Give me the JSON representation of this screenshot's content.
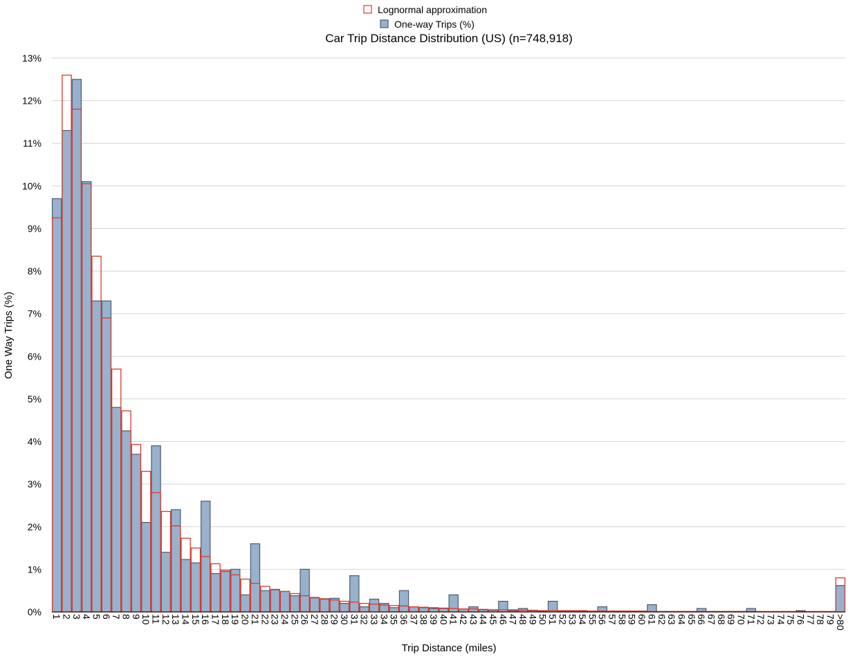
{
  "chart_data": {
    "type": "bar",
    "title": "Car Trip Distance Distribution (US) (n=748,918)",
    "xlabel": "Trip Distance (miles)",
    "ylabel": "One Way Trips (%)",
    "ylim": [
      0,
      13
    ],
    "ytick_labels": [
      "0%",
      "1%",
      "2%",
      "3%",
      "4%",
      "5%",
      "6%",
      "7%",
      "8%",
      "9%",
      "10%",
      "11%",
      "12%",
      "13%"
    ],
    "grid": true,
    "legend_position": "top-center",
    "categories": [
      "1",
      "2",
      "3",
      "4",
      "5",
      "6",
      "7",
      "8",
      "9",
      "10",
      "11",
      "12",
      "13",
      "14",
      "15",
      "16",
      "17",
      "18",
      "19",
      "20",
      "21",
      "22",
      "23",
      "24",
      "25",
      "26",
      "27",
      "28",
      "29",
      "30",
      "31",
      "32",
      "33",
      "34",
      "35",
      "36",
      "37",
      "38",
      "39",
      "40",
      "41",
      "42",
      "43",
      "44",
      "45",
      "46",
      "47",
      "48",
      "49",
      "50",
      "51",
      "52",
      "53",
      "54",
      "55",
      "56",
      "57",
      "58",
      "59",
      "60",
      "61",
      "62",
      "63",
      "64",
      "65",
      "66",
      "67",
      "68",
      "69",
      "70",
      "71",
      "72",
      "73",
      "74",
      "75",
      "76",
      "77",
      "78",
      "79",
      ">80"
    ],
    "series": [
      {
        "name": "One-way Trips (%)",
        "color": "#98b1cd",
        "border": "#4a5a6e",
        "values": [
          9.7,
          11.3,
          12.5,
          10.1,
          7.3,
          7.3,
          4.8,
          4.25,
          3.7,
          2.1,
          3.9,
          1.4,
          2.4,
          1.23,
          1.15,
          2.6,
          0.9,
          0.95,
          1.0,
          0.4,
          1.6,
          0.5,
          0.52,
          0.48,
          0.38,
          1.0,
          0.33,
          0.3,
          0.32,
          0.2,
          0.85,
          0.12,
          0.3,
          0.2,
          0.1,
          0.5,
          0.12,
          0.1,
          0.08,
          0.08,
          0.4,
          0.07,
          0.12,
          0.05,
          0.04,
          0.25,
          0.03,
          0.08,
          0.03,
          0.02,
          0.25,
          0.02,
          0.02,
          0.02,
          0.01,
          0.12,
          0.01,
          0.01,
          0.01,
          0.01,
          0.17,
          0.01,
          0.01,
          0.01,
          0.01,
          0.08,
          0.01,
          0.01,
          0.01,
          0.01,
          0.08,
          0.0,
          0.0,
          0.0,
          0.0,
          0.03,
          0.0,
          0.0,
          0.0,
          0.62
        ]
      },
      {
        "name": "Lognormal approximation",
        "color": "#d9392b",
        "values": [
          9.25,
          12.6,
          11.8,
          10.05,
          8.35,
          6.9,
          5.7,
          4.72,
          3.93,
          3.3,
          2.8,
          2.36,
          2.02,
          1.73,
          1.5,
          1.3,
          1.13,
          0.98,
          0.87,
          0.77,
          0.67,
          0.6,
          0.53,
          0.48,
          0.43,
          0.38,
          0.34,
          0.31,
          0.28,
          0.25,
          0.23,
          0.2,
          0.18,
          0.16,
          0.15,
          0.14,
          0.12,
          0.11,
          0.1,
          0.09,
          0.08,
          0.07,
          0.07,
          0.06,
          0.05,
          0.05,
          0.05,
          0.04,
          0.04,
          0.03,
          0.03,
          0.03,
          0.03,
          0.03,
          0.02,
          0.02,
          0.02,
          0.02,
          0.02,
          0.02,
          0.01,
          0.01,
          0.01,
          0.01,
          0.01,
          0.01,
          0.01,
          0.01,
          0.01,
          0.01,
          0.01,
          0.01,
          0.01,
          0.01,
          0.01,
          0.01,
          0.01,
          0.01,
          0.01,
          0.8
        ]
      }
    ]
  }
}
